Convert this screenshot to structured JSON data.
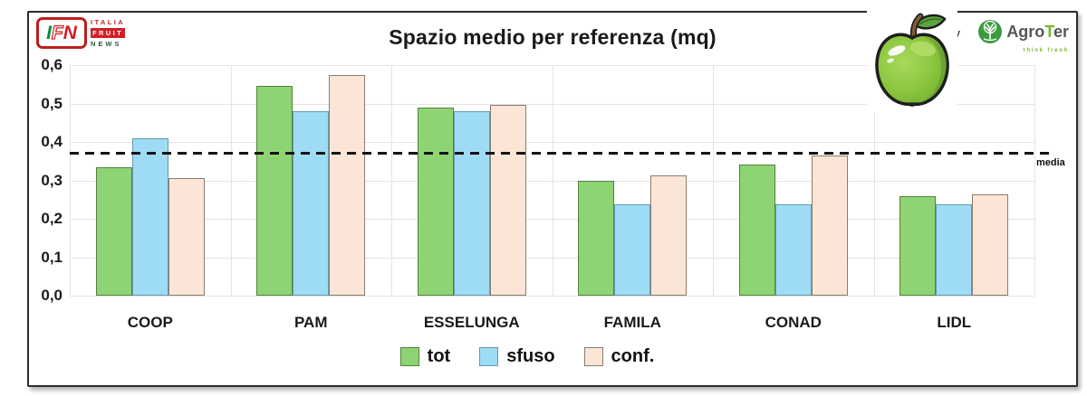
{
  "header": {
    "title": "Spazio medio per referenza (mq)",
    "powered_by": "powered by"
  },
  "branding": {
    "ifn_letters": [
      "I",
      "F",
      "N"
    ],
    "ifn_lines": [
      "ITALIA",
      "FRUIT",
      "NEWS"
    ],
    "agroter": {
      "prefix": "Agro",
      "accent": "T",
      "suffix": "er",
      "tagline": "think fresh"
    }
  },
  "chart_data": {
    "type": "bar",
    "title": "Spazio medio per referenza (mq)",
    "categories": [
      "COOP",
      "PAM",
      "ESSELUNGA",
      "FAMILA",
      "CONAD",
      "LIDL"
    ],
    "series": [
      {
        "name": "tot",
        "color": "#8ed474",
        "border": "#55803c",
        "values": [
          0.335,
          0.545,
          0.49,
          0.3,
          0.342,
          0.258
        ]
      },
      {
        "name": "sfuso",
        "color": "#9edcf5",
        "border": "#6699ad",
        "values": [
          0.41,
          0.48,
          0.48,
          0.238,
          0.238,
          0.238
        ]
      },
      {
        "name": "conf.",
        "color": "#fbe5d6",
        "border": "#8a7d70",
        "values": [
          0.307,
          0.575,
          0.497,
          0.313,
          0.365,
          0.263
        ]
      }
    ],
    "reference_line": {
      "label": "media",
      "value": 0.37,
      "color": "#141414",
      "style": "dashed"
    },
    "ylim": [
      0,
      0.6
    ],
    "ytick_step": 0.1,
    "yticks": [
      "0,0",
      "0,1",
      "0,2",
      "0,3",
      "0,4",
      "0,5",
      "0,6"
    ],
    "xlabel": "",
    "ylabel": "",
    "grid": true,
    "gridline_color": "#e4e4e4",
    "legend_position": "bottom"
  }
}
